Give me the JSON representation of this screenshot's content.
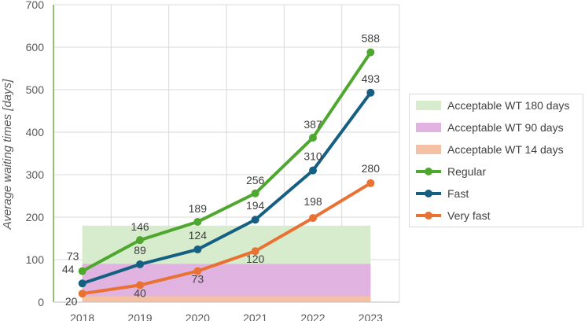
{
  "chart_data": {
    "type": "line",
    "title": "",
    "xlabel": "",
    "ylabel": "Average waiting times [days]",
    "categories": [
      "2018",
      "2019",
      "2020",
      "2021",
      "2022",
      "2023"
    ],
    "ylim": [
      0,
      700
    ],
    "yticks": [
      0,
      100,
      200,
      300,
      400,
      500,
      600,
      700
    ],
    "grid": true,
    "legend_position": "right",
    "bands": [
      {
        "name": "Acceptable WT 180 days",
        "from": 0,
        "to": 180,
        "color": "#d6eccd"
      },
      {
        "name": "Acceptable WT 90 days",
        "from": 0,
        "to": 90,
        "color": "#e0b3e0"
      },
      {
        "name": "Acceptable WT 14 days",
        "from": 0,
        "to": 14,
        "color": "#f4c1a5"
      }
    ],
    "series": [
      {
        "name": "Regular",
        "values": [
          73,
          146,
          189,
          256,
          387,
          588
        ],
        "labels": [
          "73",
          "146",
          "189",
          "256",
          "387",
          "588"
        ],
        "color": "#4ea72e"
      },
      {
        "name": "Fast",
        "values": [
          44,
          89,
          124,
          194,
          310,
          493
        ],
        "labels": [
          "44",
          "89",
          "124",
          "194",
          "310",
          "493"
        ],
        "color": "#156082"
      },
      {
        "name": "Very fast",
        "values": [
          20,
          40,
          73,
          120,
          198,
          280
        ],
        "labels": [
          "20",
          "40",
          "73",
          "120",
          "198",
          "280"
        ],
        "color": "#e97132"
      }
    ]
  }
}
